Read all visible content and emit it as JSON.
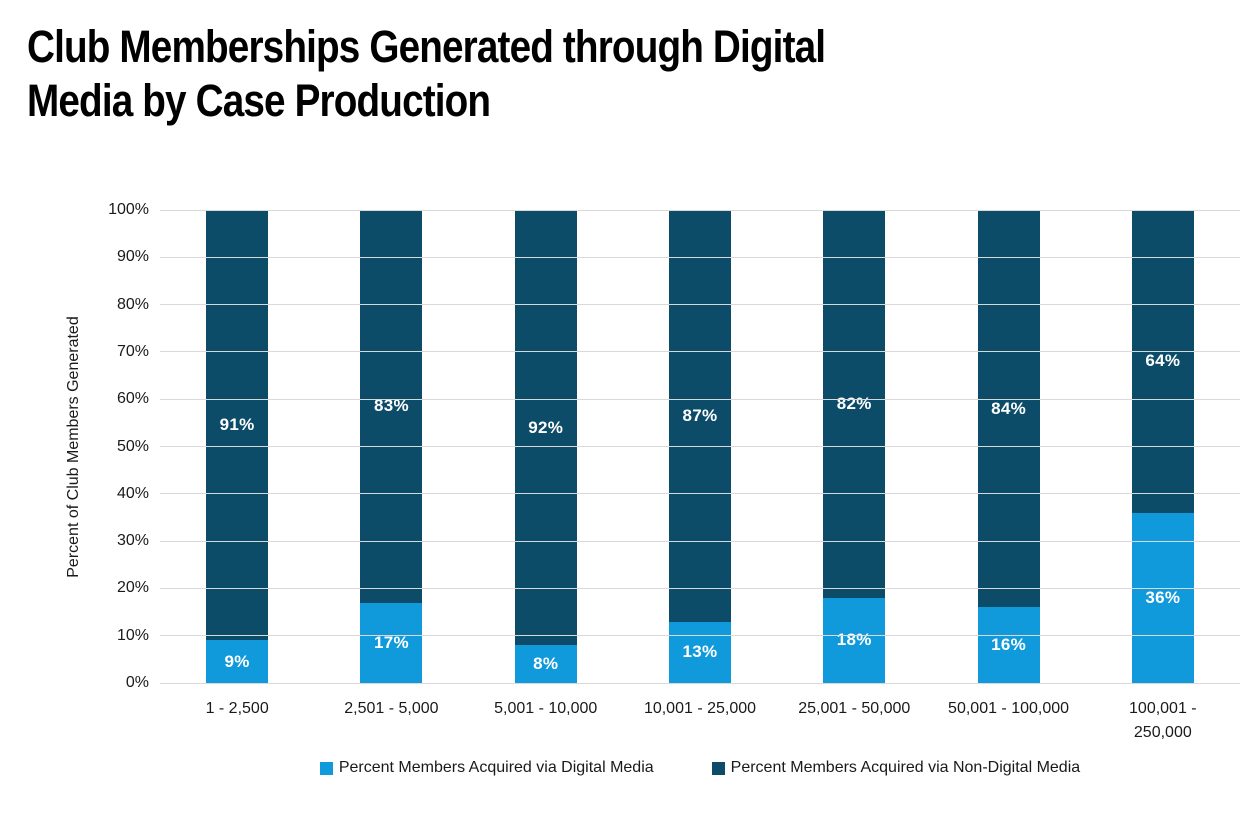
{
  "title": {
    "line1": "Club Memberships Generated through Digital",
    "line2": "Media by Case Production"
  },
  "chart_data": {
    "type": "bar",
    "stacked": true,
    "title": "Club Memberships Generated through Digital Media by Case Production",
    "xlabel": "",
    "ylabel": "Percent of Club Members Generated",
    "ylim": [
      0,
      100
    ],
    "grid": true,
    "legend_position": "bottom",
    "data_label_suffix": "%",
    "y_ticks": [
      "0%",
      "10%",
      "20%",
      "30%",
      "40%",
      "50%",
      "60%",
      "70%",
      "80%",
      "90%",
      "100%"
    ],
    "categories": [
      "1 - 2,500",
      "2,501 - 5,000",
      "5,001 - 10,000",
      "10,001 - 25,000",
      "25,001 - 50,000",
      "50,001 - 100,000",
      "100,001 -\n250,000"
    ],
    "series": [
      {
        "name": "Percent Members Acquired via Digital Media",
        "color": "#1099db",
        "values": [
          9,
          17,
          8,
          13,
          18,
          16,
          36
        ]
      },
      {
        "name": "Percent Members Acquired via Non-Digital Media",
        "color": "#0d4c68",
        "values": [
          91,
          83,
          92,
          87,
          82,
          84,
          64
        ]
      }
    ]
  },
  "colors": {
    "digital_bar": "#1099db",
    "non_digital_bar": "#0d4c68",
    "gridline": "#d9d9d9",
    "axis_text": "#1a1a1a",
    "title_text": "#000000",
    "bar_label_text": "#ffffff",
    "background": "#ffffff"
  }
}
